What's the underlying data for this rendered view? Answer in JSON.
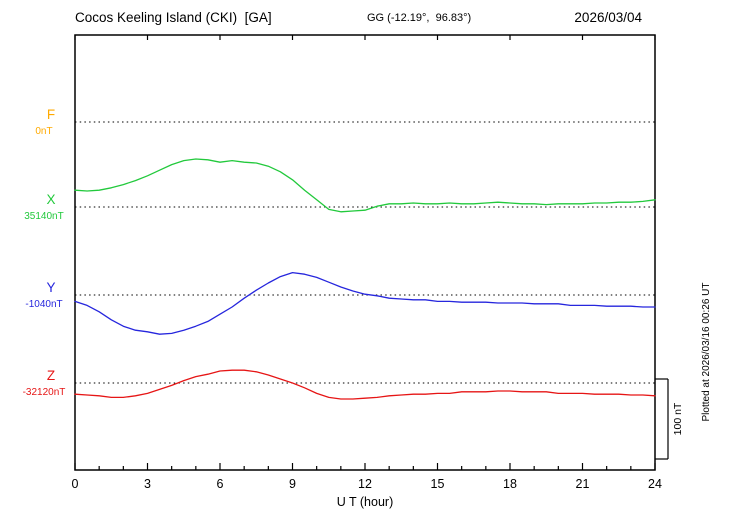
{
  "header": {
    "title": "Cocos Keeling Island (CKI)  [GA]",
    "coords": "GG (-12.19°,  96.83°)",
    "date": "2026/03/04"
  },
  "axes": {
    "x_label": "U T (hour)",
    "x_ticks": [
      0,
      3,
      6,
      9,
      12,
      15,
      18,
      21,
      24
    ],
    "x_range": [
      0,
      24
    ]
  },
  "scale_bar": {
    "label": "100 nT",
    "nT": 100
  },
  "footer_note": "Plotted at 2026/03/16 00:26 UT",
  "chart_data": {
    "type": "line",
    "x_label": "U T (hour)",
    "x_range": [
      0,
      24
    ],
    "y_scale_reference": "100 nT",
    "x": [
      0,
      0.5,
      1,
      1.5,
      2,
      2.5,
      3,
      3.5,
      4,
      4.5,
      5,
      5.5,
      6,
      6.5,
      7,
      7.5,
      8,
      8.5,
      9,
      9.5,
      10,
      10.5,
      11,
      11.5,
      12,
      12.5,
      13,
      13.5,
      14,
      14.5,
      15,
      15.5,
      16,
      16.5,
      17,
      17.5,
      18,
      18.5,
      19,
      19.5,
      20,
      20.5,
      21,
      21.5,
      22,
      22.5,
      23,
      23.5,
      24
    ],
    "series": [
      {
        "name": "F",
        "value_label": "0nT",
        "baseline_nT": 0,
        "color": "#ffaa00",
        "offsets_nT": null
      },
      {
        "name": "X",
        "value_label": "35140nT",
        "baseline_nT": 35140,
        "color": "#22c93c",
        "offsets_nT": [
          21,
          20,
          21,
          24,
          28,
          33,
          39,
          46,
          53,
          58,
          60,
          59,
          56,
          58,
          56,
          55,
          51,
          44,
          34,
          21,
          9,
          -3,
          -6,
          -5,
          -4,
          1,
          4,
          4,
          5,
          4,
          4,
          5,
          4,
          4,
          5,
          6,
          5,
          4,
          4,
          3,
          4,
          4,
          4,
          5,
          5,
          6,
          6,
          7,
          9
        ]
      },
      {
        "name": "Y",
        "value_label": "-1040nT",
        "baseline_nT": -1040,
        "color": "#2626dd",
        "offsets_nT": [
          -8,
          -13,
          -21,
          -31,
          -39,
          -44,
          -46,
          -49,
          -48,
          -44,
          -39,
          -33,
          -24,
          -15,
          -4,
          6,
          15,
          23,
          28,
          26,
          22,
          16,
          10,
          5,
          1,
          -1,
          -4,
          -5,
          -6,
          -6,
          -8,
          -8,
          -9,
          -9,
          -9,
          -10,
          -10,
          -10,
          -11,
          -11,
          -11,
          -13,
          -13,
          -13,
          -14,
          -14,
          -14,
          -15,
          -15
        ]
      },
      {
        "name": "Z",
        "value_label": "-32120nT",
        "baseline_nT": -32120,
        "color": "#e61515",
        "offsets_nT": [
          -14,
          -15,
          -16,
          -18,
          -18,
          -16,
          -13,
          -8,
          -3,
          3,
          8,
          11,
          15,
          16,
          16,
          14,
          10,
          5,
          0,
          -6,
          -13,
          -18,
          -20,
          -20,
          -19,
          -18,
          -16,
          -15,
          -14,
          -14,
          -13,
          -13,
          -11,
          -11,
          -11,
          -10,
          -10,
          -11,
          -11,
          -11,
          -13,
          -13,
          -13,
          -14,
          -14,
          -14,
          -15,
          -15,
          -16
        ]
      }
    ]
  }
}
